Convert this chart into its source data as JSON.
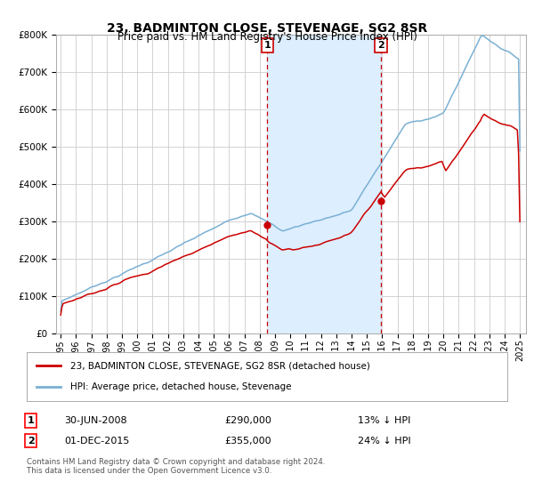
{
  "title": "23, BADMINTON CLOSE, STEVENAGE, SG2 8SR",
  "subtitle": "Price paid vs. HM Land Registry's House Price Index (HPI)",
  "legend_line1": "23, BADMINTON CLOSE, STEVENAGE, SG2 8SR (detached house)",
  "legend_line2": "HPI: Average price, detached house, Stevenage",
  "marker1_date": "30-JUN-2008",
  "marker1_price": "£290,000",
  "marker1_pct": "13% ↓ HPI",
  "marker1_x": 2008.5,
  "marker1_y": 290000,
  "marker2_date": "01-DEC-2015",
  "marker2_price": "£355,000",
  "marker2_pct": "24% ↓ HPI",
  "marker2_x": 2015.92,
  "marker2_y": 355000,
  "red_color": "#cc0000",
  "blue_color": "#7ab0d4",
  "shade_color": "#ddeeff",
  "vline_color": "#cc0000",
  "footer1": "Contains HM Land Registry data © Crown copyright and database right 2024.",
  "footer2": "This data is licensed under the Open Government Licence v3.0.",
  "ylim": [
    0,
    800000
  ],
  "yticks": [
    0,
    100000,
    200000,
    300000,
    400000,
    500000,
    600000,
    700000,
    800000
  ],
  "xlim_start": 1994.7,
  "xlim_end": 2025.4
}
